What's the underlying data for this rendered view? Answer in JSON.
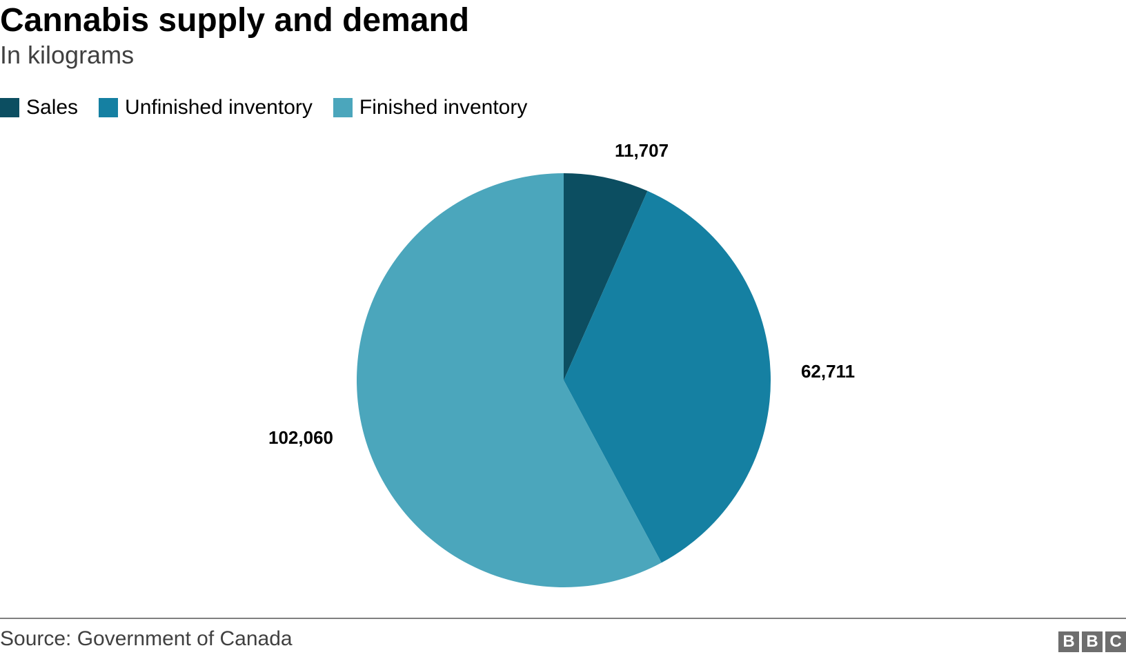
{
  "chart_data": {
    "type": "pie",
    "title": "Cannabis supply and demand",
    "subtitle": "In kilograms",
    "unit": "kilograms",
    "legend_position": "top-left",
    "start_angle": "12 o'clock",
    "direction": "clockwise",
    "slices": [
      {
        "label": "Sales",
        "value": 11707,
        "display": "11,707",
        "color": "#0c4e61"
      },
      {
        "label": "Unfinished inventory",
        "value": 62711,
        "display": "62,711",
        "color": "#1580a2"
      },
      {
        "label": "Finished inventory",
        "value": 102060,
        "display": "102,060",
        "color": "#4ba6bc"
      }
    ]
  },
  "footer": {
    "source": "Source: Government of Canada",
    "logo_letters": [
      "B",
      "B",
      "C"
    ],
    "rule_color": "#7f7f7f"
  }
}
